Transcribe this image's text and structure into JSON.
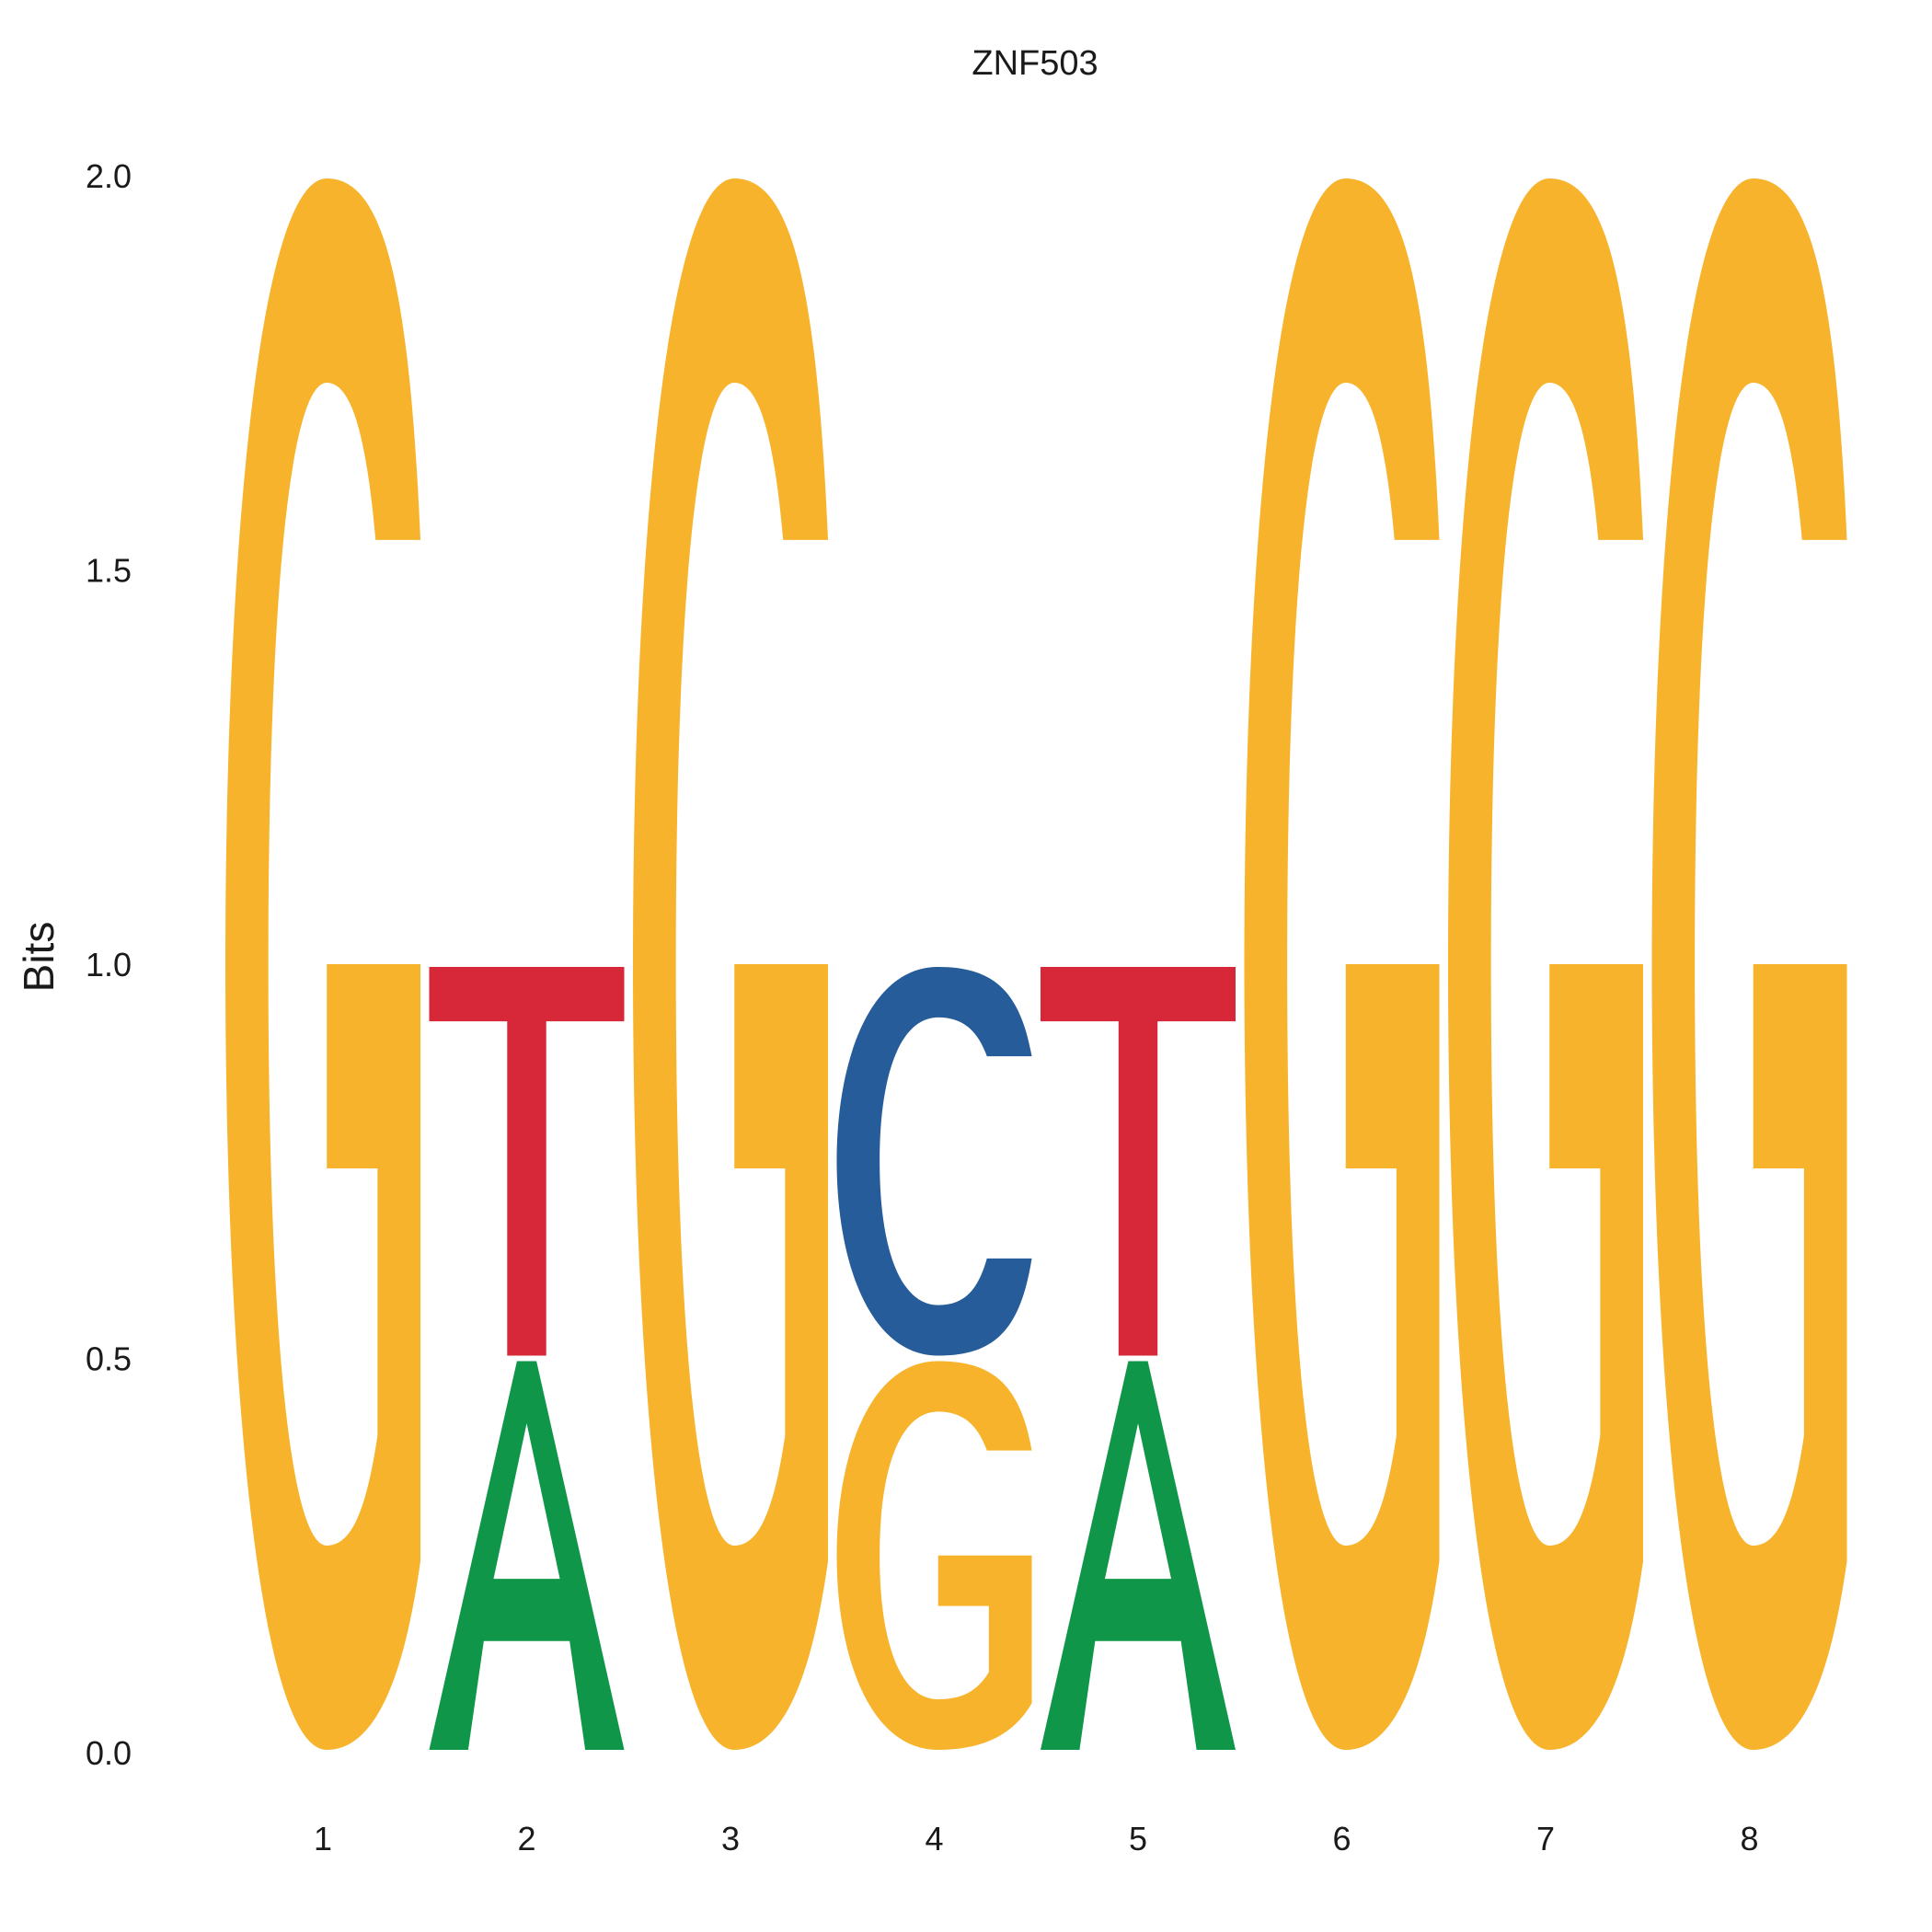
{
  "chart_data": {
    "type": "sequence-logo",
    "title": "ZNF503",
    "xlabel": "",
    "ylabel": "Bits",
    "ylim": [
      0,
      2
    ],
    "yticks": [
      "0.0",
      "0.5",
      "1.0",
      "1.5",
      "2.0"
    ],
    "xticks": [
      "1",
      "2",
      "3",
      "4",
      "5",
      "6",
      "7",
      "8"
    ],
    "grid": false,
    "colors": {
      "A": "#109648",
      "C": "#255C99",
      "G": "#F7B32B",
      "T": "#D62839"
    },
    "positions": [
      {
        "pos": 1,
        "letters": [
          {
            "base": "G",
            "bits": 2.0
          }
        ]
      },
      {
        "pos": 2,
        "letters": [
          {
            "base": "A",
            "bits": 0.5
          },
          {
            "base": "T",
            "bits": 0.5
          }
        ]
      },
      {
        "pos": 3,
        "letters": [
          {
            "base": "G",
            "bits": 2.0
          }
        ]
      },
      {
        "pos": 4,
        "letters": [
          {
            "base": "G",
            "bits": 0.5
          },
          {
            "base": "C",
            "bits": 0.5
          }
        ]
      },
      {
        "pos": 5,
        "letters": [
          {
            "base": "A",
            "bits": 0.5
          },
          {
            "base": "T",
            "bits": 0.5
          }
        ]
      },
      {
        "pos": 6,
        "letters": [
          {
            "base": "G",
            "bits": 2.0
          }
        ]
      },
      {
        "pos": 7,
        "letters": [
          {
            "base": "G",
            "bits": 2.0
          }
        ]
      },
      {
        "pos": 8,
        "letters": [
          {
            "base": "G",
            "bits": 2.0
          }
        ]
      }
    ]
  }
}
